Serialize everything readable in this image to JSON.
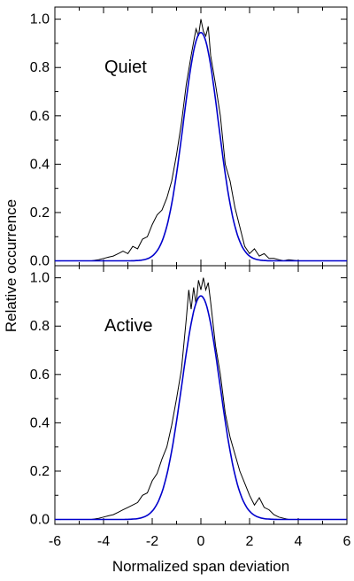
{
  "chart_data": [
    {
      "type": "line",
      "panel_label": "Quiet",
      "xlim": [
        -6,
        6
      ],
      "ylim": [
        -0.02,
        1.05
      ],
      "xticks": [
        -6,
        -4,
        -2,
        0,
        2,
        4,
        6
      ],
      "yticks": [
        0.0,
        0.2,
        0.4,
        0.6,
        0.8,
        1.0
      ],
      "ytick_labels": [
        "0.0",
        "0.2",
        "0.4",
        "0.6",
        "0.8",
        "1.0"
      ],
      "series": [
        {
          "color": "#000000",
          "style": "histogram",
          "x": [
            -6.0,
            -5.5,
            -5.0,
            -4.5,
            -4.2,
            -4.0,
            -3.8,
            -3.6,
            -3.4,
            -3.2,
            -3.0,
            -2.8,
            -2.6,
            -2.4,
            -2.2,
            -2.0,
            -1.8,
            -1.6,
            -1.4,
            -1.2,
            -1.0,
            -0.8,
            -0.6,
            -0.4,
            -0.2,
            -0.1,
            0.0,
            0.1,
            0.2,
            0.3,
            0.4,
            0.6,
            0.8,
            1.0,
            1.2,
            1.4,
            1.6,
            1.8,
            2.0,
            2.2,
            2.4,
            2.6,
            2.8,
            3.0,
            3.2,
            3.4,
            3.6,
            4.0,
            4.5,
            5.0,
            6.0
          ],
          "y": [
            0.0,
            0.0,
            0.0,
            0.0,
            0.005,
            0.01,
            0.015,
            0.02,
            0.03,
            0.04,
            0.03,
            0.06,
            0.05,
            0.09,
            0.1,
            0.15,
            0.19,
            0.21,
            0.26,
            0.33,
            0.44,
            0.57,
            0.73,
            0.85,
            0.96,
            0.93,
            1.0,
            0.95,
            0.93,
            0.97,
            0.85,
            0.73,
            0.6,
            0.4,
            0.33,
            0.22,
            0.14,
            0.06,
            0.03,
            0.05,
            0.02,
            0.03,
            0.01,
            0.01,
            0.005,
            0.0,
            0.005,
            0.0,
            0.0,
            0.0,
            0.0
          ]
        },
        {
          "color": "#0000cc",
          "style": "gaussian",
          "amplitude": 0.945,
          "mean": 0.0,
          "sigma": 0.72
        }
      ]
    },
    {
      "type": "line",
      "panel_label": "Active",
      "xlim": [
        -6,
        6
      ],
      "ylim": [
        -0.02,
        1.05
      ],
      "xticks": [
        -6,
        -4,
        -2,
        0,
        2,
        4,
        6
      ],
      "yticks": [
        0.0,
        0.2,
        0.4,
        0.6,
        0.8,
        1.0
      ],
      "ytick_labels": [
        "0.0",
        "0.2",
        "0.4",
        "0.6",
        "0.8",
        "1.0"
      ],
      "series": [
        {
          "color": "#000000",
          "style": "histogram",
          "x": [
            -6.0,
            -5.0,
            -4.5,
            -4.2,
            -4.0,
            -3.8,
            -3.6,
            -3.4,
            -3.2,
            -3.0,
            -2.8,
            -2.6,
            -2.4,
            -2.2,
            -2.0,
            -1.8,
            -1.6,
            -1.4,
            -1.2,
            -1.0,
            -0.8,
            -0.6,
            -0.5,
            -0.4,
            -0.3,
            -0.2,
            -0.1,
            0.0,
            0.1,
            0.2,
            0.3,
            0.4,
            0.6,
            0.8,
            1.0,
            1.2,
            1.4,
            1.6,
            1.8,
            2.0,
            2.2,
            2.4,
            2.6,
            2.8,
            3.0,
            3.2,
            3.4,
            3.6,
            4.0,
            5.0,
            6.0
          ],
          "y": [
            0.0,
            0.0,
            0.0,
            0.005,
            0.01,
            0.015,
            0.02,
            0.03,
            0.04,
            0.05,
            0.06,
            0.07,
            0.1,
            0.11,
            0.16,
            0.19,
            0.25,
            0.3,
            0.39,
            0.5,
            0.62,
            0.83,
            0.95,
            0.87,
            0.96,
            0.89,
            0.99,
            0.95,
            1.0,
            0.95,
            0.98,
            0.9,
            0.72,
            0.6,
            0.44,
            0.34,
            0.27,
            0.2,
            0.15,
            0.1,
            0.06,
            0.09,
            0.05,
            0.04,
            0.02,
            0.01,
            0.005,
            0.0,
            0.0,
            0.0,
            0.0
          ]
        },
        {
          "color": "#0000cc",
          "style": "gaussian",
          "amplitude": 0.925,
          "mean": 0.0,
          "sigma": 0.78
        }
      ]
    }
  ],
  "axes": {
    "xlabel": "Normalized span deviation",
    "ylabel": "Relative occurrence",
    "xtick_labels": [
      "-6",
      "-4",
      "-2",
      "0",
      "2",
      "4",
      "6"
    ]
  }
}
